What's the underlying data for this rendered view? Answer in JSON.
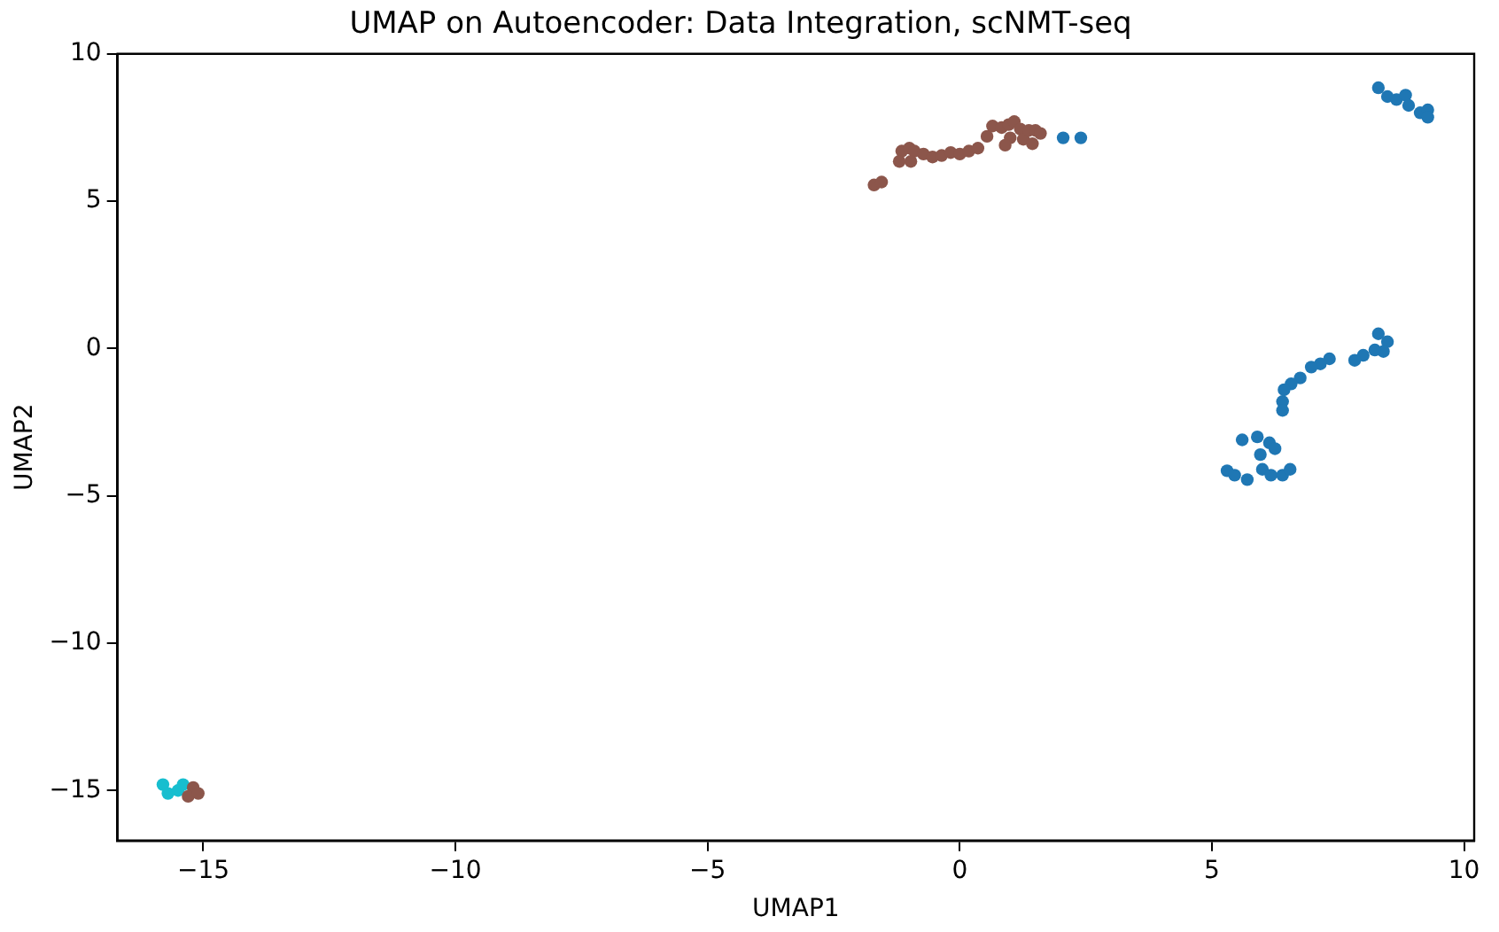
{
  "chart_data": {
    "type": "scatter",
    "title": "UMAP on Autoencoder: Data Integration, scNMT-seq",
    "xlabel": "UMAP1",
    "ylabel": "UMAP2",
    "xlim": [
      -16.7,
      10.2
    ],
    "ylim": [
      -16.7,
      10
    ],
    "xticks": [
      {
        "value": -15,
        "label": "−15"
      },
      {
        "value": -10,
        "label": "−10"
      },
      {
        "value": -5,
        "label": "−5"
      },
      0,
      5,
      10
    ],
    "yticks": [
      {
        "value": -15,
        "label": "−15"
      },
      {
        "value": -10,
        "label": "−10"
      },
      {
        "value": -5,
        "label": "−5"
      },
      0,
      5,
      10
    ],
    "grid": false,
    "legend": false,
    "marker": "circle",
    "series": [
      {
        "color": "#1f77b4",
        "x": [
          2.05,
          2.4,
          8.3,
          8.48,
          8.66,
          8.84,
          8.9,
          9.13,
          9.28,
          9.28,
          8.3,
          8.48,
          8.4,
          8.23,
          8.0,
          7.83,
          7.33,
          7.15,
          6.97,
          6.75,
          6.57,
          6.43,
          6.4,
          6.4,
          5.6,
          5.9,
          6.14,
          5.96,
          6.25,
          5.3,
          5.45,
          5.7,
          6.0,
          6.17,
          6.4,
          6.55
        ],
        "values": [
          7.15,
          7.15,
          8.85,
          8.55,
          8.45,
          8.6,
          8.25,
          8.0,
          8.1,
          7.85,
          0.5,
          0.23,
          -0.1,
          -0.05,
          -0.23,
          -0.4,
          -0.35,
          -0.52,
          -0.63,
          -1.0,
          -1.2,
          -1.4,
          -1.8,
          -2.1,
          -3.1,
          -3.0,
          -3.2,
          -3.6,
          -3.4,
          -4.15,
          -4.3,
          -4.45,
          -4.1,
          -4.3,
          -4.3,
          -4.1
        ]
      },
      {
        "color": "#8c564b",
        "x": [
          -1.7,
          -1.55,
          -1.15,
          -1.0,
          -0.9,
          -0.72,
          -0.54,
          -0.36,
          -0.18,
          0,
          0.18,
          0.36,
          0.54,
          0.65,
          0.83,
          0.97,
          1.08,
          1.2,
          1.0,
          1.26,
          1.37,
          1.5,
          1.6,
          1.44,
          0.9,
          -1.2,
          -0.97,
          -15.2,
          -15.3,
          -15.1
        ],
        "values": [
          5.55,
          5.65,
          6.7,
          6.8,
          6.7,
          6.6,
          6.5,
          6.55,
          6.65,
          6.6,
          6.7,
          6.8,
          7.2,
          7.55,
          7.5,
          7.6,
          7.7,
          7.45,
          7.15,
          7.1,
          7.4,
          7.4,
          7.3,
          6.95,
          6.9,
          6.35,
          6.35,
          -14.9,
          -15.2,
          -15.1
        ]
      },
      {
        "color": "#17becf",
        "x": [
          -15.8,
          -15.7,
          -15.5,
          -15.4
        ],
        "values": [
          -14.8,
          -15.1,
          -15.0,
          -14.8
        ]
      }
    ]
  }
}
